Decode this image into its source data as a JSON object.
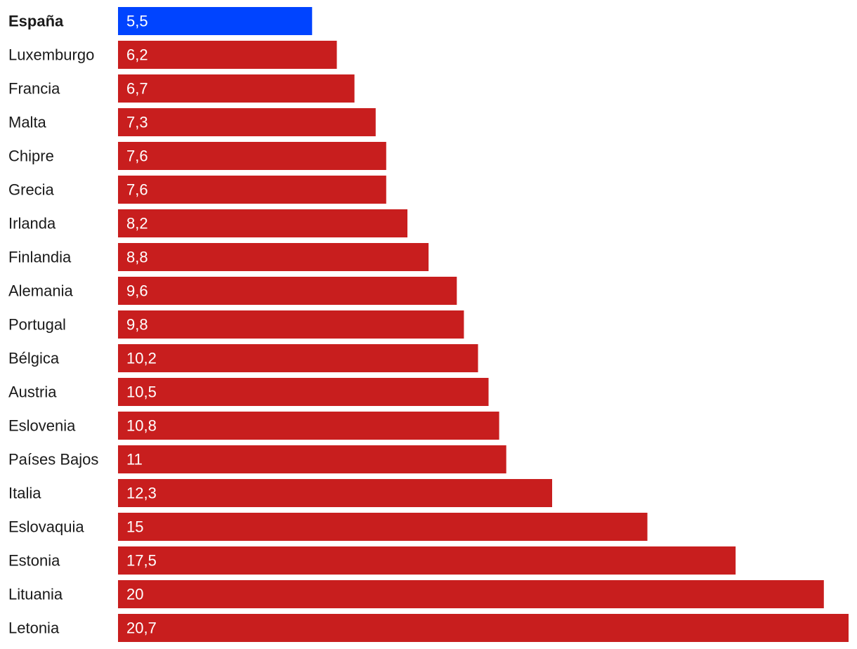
{
  "chart_data": {
    "type": "bar",
    "orientation": "horizontal",
    "title": "",
    "xlabel": "",
    "ylabel": "",
    "grid": false,
    "legend": "none",
    "xlim": [
      0,
      20.7
    ],
    "categories": [
      "España",
      "Luxemburgo",
      "Francia",
      "Malta",
      "Chipre",
      "Grecia",
      "Irlanda",
      "Finlandia",
      "Alemania",
      "Portugal",
      "Bélgica",
      "Austria",
      "Eslovenia",
      "Países Bajos",
      "Italia",
      "Eslovaquia",
      "Estonia",
      "Lituania",
      "Letonia"
    ],
    "values": [
      5.5,
      6.2,
      6.7,
      7.3,
      7.6,
      7.6,
      8.2,
      8.8,
      9.6,
      9.8,
      10.2,
      10.5,
      10.8,
      11,
      12.3,
      15,
      17.5,
      20,
      20.7
    ],
    "value_labels": [
      "5,5",
      "6,2",
      "6,7",
      "7,3",
      "7,6",
      "7,6",
      "8,2",
      "8,8",
      "9,6",
      "9,8",
      "10,2",
      "10,5",
      "10,8",
      "11",
      "12,3",
      "15",
      "17,5",
      "20",
      "20,7"
    ],
    "highlight_category": "España",
    "colors": {
      "highlight": "#0044ff",
      "default": "#c81e1e",
      "label_text": "#1a1a1a",
      "value_text": "#ffffff"
    }
  }
}
